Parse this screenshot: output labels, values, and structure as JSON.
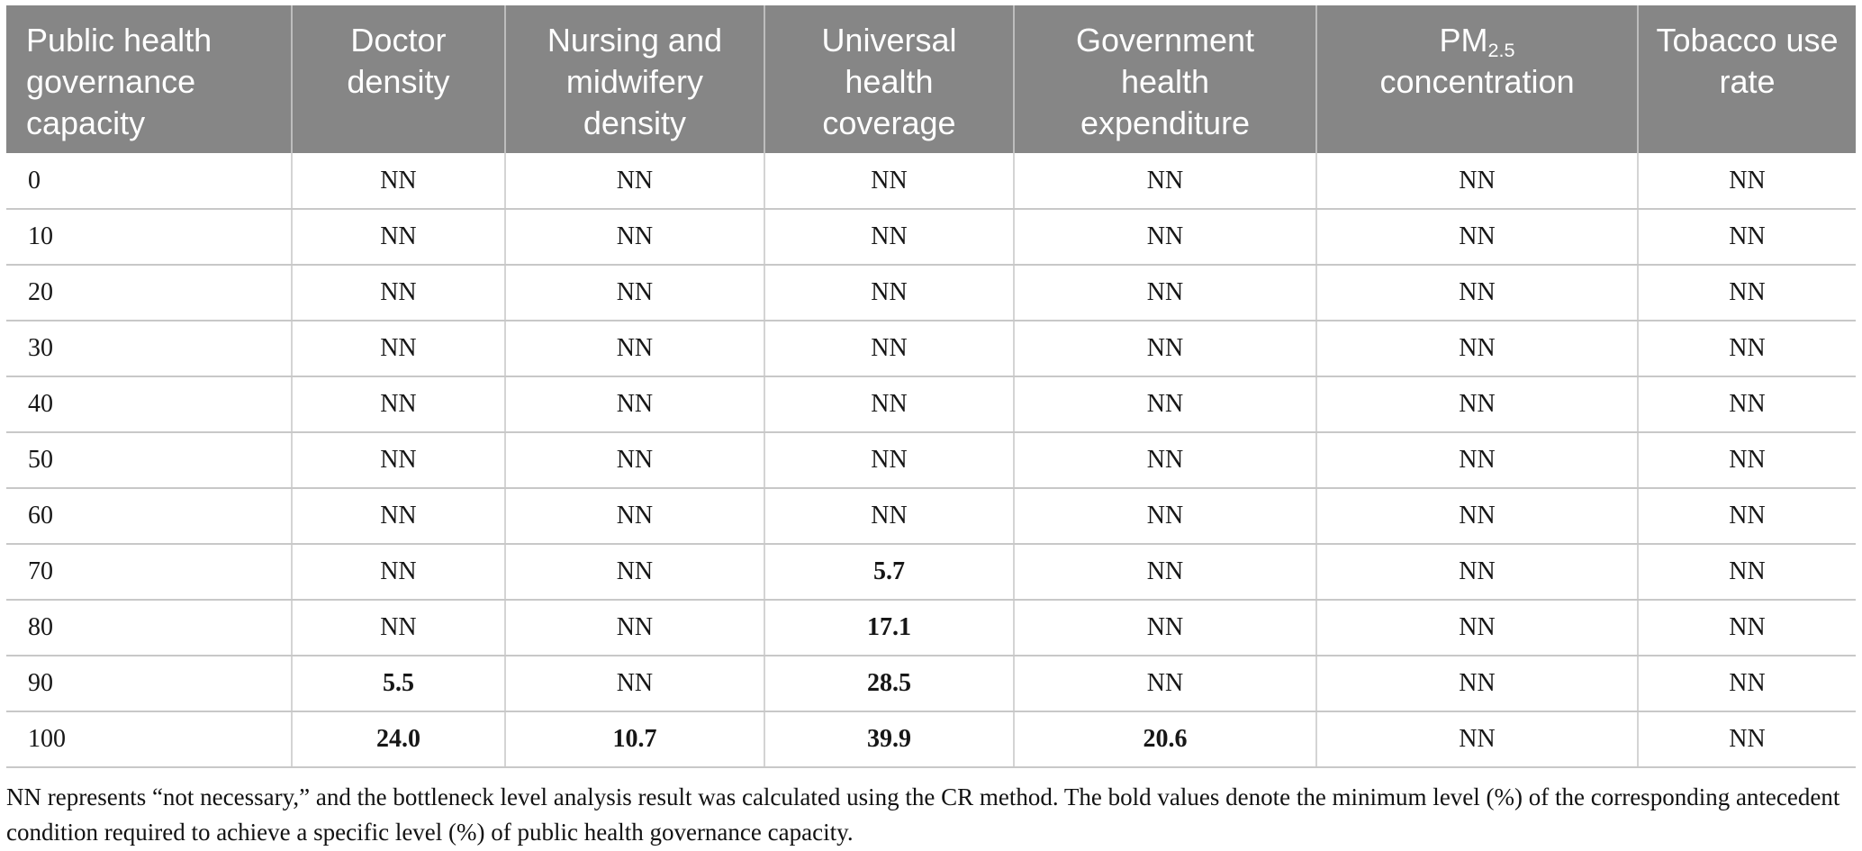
{
  "table": {
    "header_bg": "#868686",
    "header_text_color": "#ffffff",
    "header_divider_color": "#bdbdbd",
    "row_border_color": "#c8c8c8",
    "column_border_color": "#d4d4d4",
    "columns": [
      {
        "label": "Public health governance capacity",
        "align": "left",
        "width": 15.43,
        "lines": [
          [
            {
              "t": "Public health"
            }
          ],
          [
            {
              "t": "governance"
            }
          ],
          [
            {
              "t": "capacity"
            }
          ]
        ]
      },
      {
        "label": "Doctor density",
        "align": "center",
        "width": 11.54,
        "lines": [
          [
            {
              "t": "Doctor"
            }
          ],
          [
            {
              "t": "density"
            }
          ]
        ]
      },
      {
        "label": "Nursing and midwifery density",
        "align": "center",
        "width": 14.02,
        "lines": [
          [
            {
              "t": "Nursing and"
            }
          ],
          [
            {
              "t": "midwifery"
            }
          ],
          [
            {
              "t": "density"
            }
          ]
        ]
      },
      {
        "label": "Universal health coverage",
        "align": "center",
        "width": 13.49,
        "lines": [
          [
            {
              "t": "Universal"
            }
          ],
          [
            {
              "t": "health"
            }
          ],
          [
            {
              "t": "coverage"
            }
          ]
        ]
      },
      {
        "label": "Government health expenditure",
        "align": "center",
        "width": 16.36,
        "lines": [
          [
            {
              "t": "Government"
            }
          ],
          [
            {
              "t": "health"
            }
          ],
          [
            {
              "t": "expenditure"
            }
          ]
        ]
      },
      {
        "label": "PM2.5 concentration",
        "align": "center",
        "width": 17.38,
        "lines": [
          [
            {
              "t": "PM"
            },
            {
              "t": "2.5",
              "sub": true
            }
          ],
          [
            {
              "t": "concentration"
            }
          ]
        ]
      },
      {
        "label": "Tobacco use rate",
        "align": "center",
        "width": 11.78,
        "lines": [
          [
            {
              "t": "Tobacco use"
            }
          ],
          [
            {
              "t": "rate"
            }
          ]
        ]
      }
    ],
    "rows": [
      {
        "capacity": "0",
        "cells": [
          {
            "v": "NN"
          },
          {
            "v": "NN"
          },
          {
            "v": "NN"
          },
          {
            "v": "NN"
          },
          {
            "v": "NN"
          },
          {
            "v": "NN"
          }
        ]
      },
      {
        "capacity": "10",
        "cells": [
          {
            "v": "NN"
          },
          {
            "v": "NN"
          },
          {
            "v": "NN"
          },
          {
            "v": "NN"
          },
          {
            "v": "NN"
          },
          {
            "v": "NN"
          }
        ]
      },
      {
        "capacity": "20",
        "cells": [
          {
            "v": "NN"
          },
          {
            "v": "NN"
          },
          {
            "v": "NN"
          },
          {
            "v": "NN"
          },
          {
            "v": "NN"
          },
          {
            "v": "NN"
          }
        ]
      },
      {
        "capacity": "30",
        "cells": [
          {
            "v": "NN"
          },
          {
            "v": "NN"
          },
          {
            "v": "NN"
          },
          {
            "v": "NN"
          },
          {
            "v": "NN"
          },
          {
            "v": "NN"
          }
        ]
      },
      {
        "capacity": "40",
        "cells": [
          {
            "v": "NN"
          },
          {
            "v": "NN"
          },
          {
            "v": "NN"
          },
          {
            "v": "NN"
          },
          {
            "v": "NN"
          },
          {
            "v": "NN"
          }
        ]
      },
      {
        "capacity": "50",
        "cells": [
          {
            "v": "NN"
          },
          {
            "v": "NN"
          },
          {
            "v": "NN"
          },
          {
            "v": "NN"
          },
          {
            "v": "NN"
          },
          {
            "v": "NN"
          }
        ]
      },
      {
        "capacity": "60",
        "cells": [
          {
            "v": "NN"
          },
          {
            "v": "NN"
          },
          {
            "v": "NN"
          },
          {
            "v": "NN"
          },
          {
            "v": "NN"
          },
          {
            "v": "NN"
          }
        ]
      },
      {
        "capacity": "70",
        "cells": [
          {
            "v": "NN"
          },
          {
            "v": "NN"
          },
          {
            "v": "5.7",
            "bold": true
          },
          {
            "v": "NN"
          },
          {
            "v": "NN"
          },
          {
            "v": "NN"
          }
        ]
      },
      {
        "capacity": "80",
        "cells": [
          {
            "v": "NN"
          },
          {
            "v": "NN"
          },
          {
            "v": "17.1",
            "bold": true
          },
          {
            "v": "NN"
          },
          {
            "v": "NN"
          },
          {
            "v": "NN"
          }
        ]
      },
      {
        "capacity": "90",
        "cells": [
          {
            "v": "5.5",
            "bold": true
          },
          {
            "v": "NN"
          },
          {
            "v": "28.5",
            "bold": true
          },
          {
            "v": "NN"
          },
          {
            "v": "NN"
          },
          {
            "v": "NN"
          }
        ]
      },
      {
        "capacity": "100",
        "cells": [
          {
            "v": "24.0",
            "bold": true
          },
          {
            "v": "10.7",
            "bold": true
          },
          {
            "v": "39.9",
            "bold": true
          },
          {
            "v": "20.6",
            "bold": true
          },
          {
            "v": "NN"
          },
          {
            "v": "NN"
          }
        ]
      }
    ]
  },
  "footnote": "NN represents “not necessary,” and the bottleneck level analysis result was calculated using the CR method. The bold values denote the minimum level (%) of the corresponding antecedent condition required to achieve a specific level (%) of public health governance capacity."
}
